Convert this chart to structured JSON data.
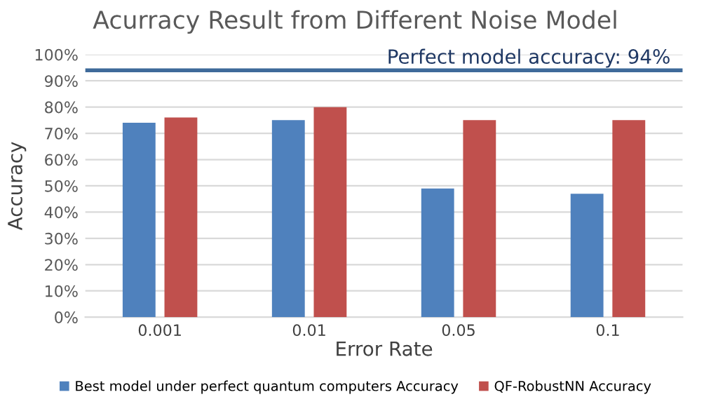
{
  "chart_data": {
    "type": "bar",
    "title": "Acurracy Result from Different Noise Model",
    "xlabel": "Error Rate",
    "ylabel": "Accuracy",
    "categories": [
      "0.001",
      "0.01",
      "0.05",
      "0.1"
    ],
    "series": [
      {
        "name": "Best model under perfect quantum computers Accuracy",
        "color": "#4f81bd",
        "values": [
          74,
          75,
          49,
          47
        ]
      },
      {
        "name": "QF-RobustNN Accuracy",
        "color": "#c0504d",
        "values": [
          76,
          80,
          75,
          75
        ]
      }
    ],
    "ylim": [
      0,
      100
    ],
    "yticks": [
      {
        "value": 0,
        "label": "0%"
      },
      {
        "value": 10,
        "label": "10%"
      },
      {
        "value": 20,
        "label": "20%"
      },
      {
        "value": 30,
        "label": "30%"
      },
      {
        "value": 40,
        "label": "40%"
      },
      {
        "value": 50,
        "label": "50%"
      },
      {
        "value": 60,
        "label": "60%"
      },
      {
        "value": 70,
        "label": "70%"
      },
      {
        "value": 80,
        "label": "80%"
      },
      {
        "value": 90,
        "label": "90%"
      },
      {
        "value": 100,
        "label": "100%"
      }
    ],
    "ref_lines": [
      {
        "axis": "y",
        "value": 94,
        "label": "Perfect model accuracy: 94%",
        "color": "#3e6a9a"
      }
    ],
    "grid": "y",
    "legend": "bottom"
  }
}
